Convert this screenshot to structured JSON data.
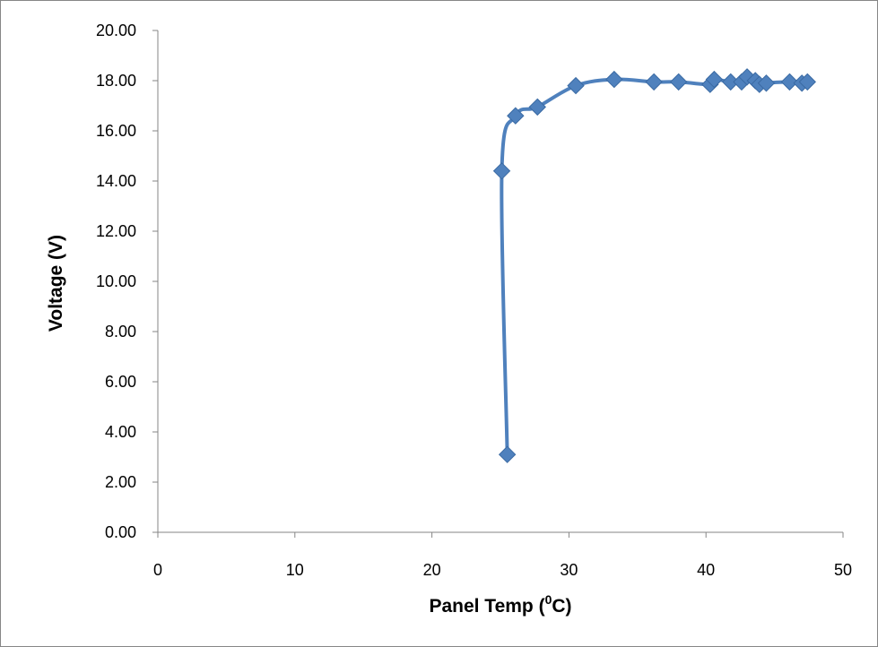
{
  "chart_data": {
    "type": "scatter",
    "xlabel": "Panel Temp (",
    "xlabel_sup": "0",
    "xlabel_end": "C)",
    "ylabel": "Voltage (V)",
    "xlim": [
      0,
      50
    ],
    "ylim": [
      0,
      20
    ],
    "x_ticks": [
      "0",
      "10",
      "20",
      "30",
      "40",
      "50"
    ],
    "y_ticks": [
      "0.00",
      "2.00",
      "4.00",
      "6.00",
      "8.00",
      "10.00",
      "12.00",
      "14.00",
      "16.00",
      "18.00",
      "20.00"
    ],
    "grid": false,
    "legend": "none",
    "color": "#4F81BD",
    "marker": "diamond",
    "line": "smooth",
    "series": [
      {
        "x": [
          25.5,
          25.1,
          26.1,
          27.7,
          30.5,
          33.3,
          36.2,
          38.0,
          40.3,
          40.6,
          41.8,
          42.6,
          43.0,
          43.6,
          43.9,
          44.4,
          46.1,
          47.0,
          47.4
        ],
        "y": [
          3.1,
          14.4,
          16.6,
          16.95,
          17.8,
          18.05,
          17.95,
          17.95,
          17.85,
          18.05,
          17.95,
          17.95,
          18.15,
          18.0,
          17.85,
          17.9,
          17.95,
          17.9,
          17.95
        ]
      }
    ]
  }
}
